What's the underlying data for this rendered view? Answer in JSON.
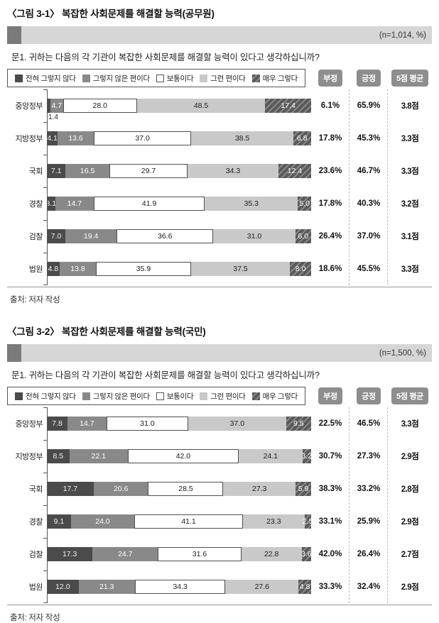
{
  "question": "문1. 귀하는 다음의 각 기관이 복잡한 사회문제를 해결할 능력이 있다고 생각하십니까?",
  "source": "출처: 저자 작성",
  "legend": [
    "전혀 그렇지 않다",
    "그렇지 않은 편이다",
    "보통이다",
    "그런 편이다",
    "매우 그렇다"
  ],
  "stat_headers": [
    "부정",
    "긍정",
    "5점 평균"
  ],
  "colors": {
    "seg1": "#4b4b4b",
    "seg2": "#898989",
    "seg3_border": "#4f4f4f",
    "seg4": "#c9c9c9",
    "hatch_dark": "#5a5a5a",
    "hatch_light": "#8d8d8d",
    "banner_bg": "#d6d6d6",
    "banner_block": "#7a7a7a",
    "badge_bg": "#8e8e8e",
    "axis": "#555555",
    "separator": "#bdbdbd",
    "rule": "#999999"
  },
  "chart_data": [
    {
      "type": "bar",
      "stacked": true,
      "orientation": "horizontal",
      "unit": "%",
      "xlim": [
        0,
        100
      ],
      "title": "〈그림 3-1〉 복잡한 사회문제를 해결할 능력(공무원)",
      "n_label": "(n=1,014, %)",
      "series_labels": [
        "전혀 그렇지 않다",
        "그렇지 않은 편이다",
        "보통이다",
        "그런 편이다",
        "매우 그렇다"
      ],
      "categories": [
        "중앙정부",
        "지방정부",
        "국회",
        "경찰",
        "검찰",
        "법원"
      ],
      "rows": [
        {
          "label": "중앙정부",
          "values": [
            1.4,
            4.7,
            28.0,
            48.5,
            17.4
          ],
          "seg_labels": [
            "",
            "4.7",
            "28.0",
            "48.5",
            "17.4"
          ],
          "callout": "1.4",
          "negative": "6.1%",
          "positive": "65.9%",
          "mean": "3.8점"
        },
        {
          "label": "지방정부",
          "values": [
            4.1,
            13.6,
            37.0,
            38.5,
            6.8
          ],
          "seg_labels": [
            "4.1",
            "13.6",
            "37.0",
            "38.5",
            "6.8"
          ],
          "negative": "17.8%",
          "positive": "45.3%",
          "mean": "3.3점"
        },
        {
          "label": "국회",
          "values": [
            7.1,
            16.5,
            29.7,
            34.3,
            12.4
          ],
          "seg_labels": [
            "7.1",
            "16.5",
            "29.7",
            "34.3",
            "12.4"
          ],
          "negative": "23.6%",
          "positive": "46.7%",
          "mean": "3.3점"
        },
        {
          "label": "경찰",
          "values": [
            3.1,
            14.7,
            41.9,
            35.3,
            5.0
          ],
          "seg_labels": [
            "3.1",
            "14.7",
            "41.9",
            "35.3",
            "5.0"
          ],
          "negative": "17.8%",
          "positive": "40.3%",
          "mean": "3.2점"
        },
        {
          "label": "검찰",
          "values": [
            7.0,
            19.4,
            36.6,
            31.0,
            6.0
          ],
          "seg_labels": [
            "7.0",
            "19.4",
            "36.6",
            "31.0",
            "6.0"
          ],
          "negative": "26.4%",
          "positive": "37.0%",
          "mean": "3.1점"
        },
        {
          "label": "법원",
          "values": [
            4.8,
            13.8,
            35.9,
            37.5,
            8.0
          ],
          "seg_labels": [
            "4.8",
            "13.8",
            "35.9",
            "37.5",
            "8.0"
          ],
          "negative": "18.6%",
          "positive": "45.5%",
          "mean": "3.3점"
        }
      ]
    },
    {
      "type": "bar",
      "stacked": true,
      "orientation": "horizontal",
      "unit": "%",
      "xlim": [
        0,
        100
      ],
      "title": "〈그림 3-2〉 복잡한 사회문제를 해결할 능력(국민)",
      "n_label": "(n=1,500, %)",
      "series_labels": [
        "전혀 그렇지 않다",
        "그렇지 않은 편이다",
        "보통이다",
        "그런 편이다",
        "매우 그렇다"
      ],
      "categories": [
        "중앙정부",
        "지방정부",
        "국회",
        "경찰",
        "검찰",
        "법원"
      ],
      "rows": [
        {
          "label": "중앙정부",
          "values": [
            7.8,
            14.7,
            31.0,
            37.0,
            9.5
          ],
          "seg_labels": [
            "7.8",
            "14.7",
            "31.0",
            "37.0",
            "9.5"
          ],
          "negative": "22.5%",
          "positive": "46.5%",
          "mean": "3.3점"
        },
        {
          "label": "지방정부",
          "values": [
            8.5,
            22.1,
            42.0,
            24.1,
            3.2
          ],
          "seg_labels": [
            "8.5",
            "22.1",
            "42.0",
            "24.1",
            "3.2"
          ],
          "negative": "30.7%",
          "positive": "27.3%",
          "mean": "2.9점"
        },
        {
          "label": "국회",
          "values": [
            17.7,
            20.6,
            28.5,
            27.3,
            5.9
          ],
          "seg_labels": [
            "17.7",
            "20.6",
            "28.5",
            "27.3",
            "5.9"
          ],
          "negative": "38.3%",
          "positive": "33.2%",
          "mean": "2.8점"
        },
        {
          "label": "경찰",
          "values": [
            9.1,
            24.0,
            41.1,
            23.3,
            2.5
          ],
          "seg_labels": [
            "9.1",
            "24.0",
            "41.1",
            "23.3",
            "2.5"
          ],
          "negative": "33.1%",
          "positive": "25.9%",
          "mean": "2.9점"
        },
        {
          "label": "검찰",
          "values": [
            17.3,
            24.7,
            31.6,
            22.8,
            3.6
          ],
          "seg_labels": [
            "17.3",
            "24.7",
            "31.6",
            "22.8",
            "3.6"
          ],
          "negative": "42.0%",
          "positive": "26.4%",
          "mean": "2.7점"
        },
        {
          "label": "법원",
          "values": [
            12.0,
            21.3,
            34.3,
            27.6,
            4.8
          ],
          "seg_labels": [
            "12.0",
            "21.3",
            "34.3",
            "27.6",
            "4.8"
          ],
          "negative": "33.3%",
          "positive": "32.4%",
          "mean": "2.9점"
        }
      ]
    }
  ]
}
